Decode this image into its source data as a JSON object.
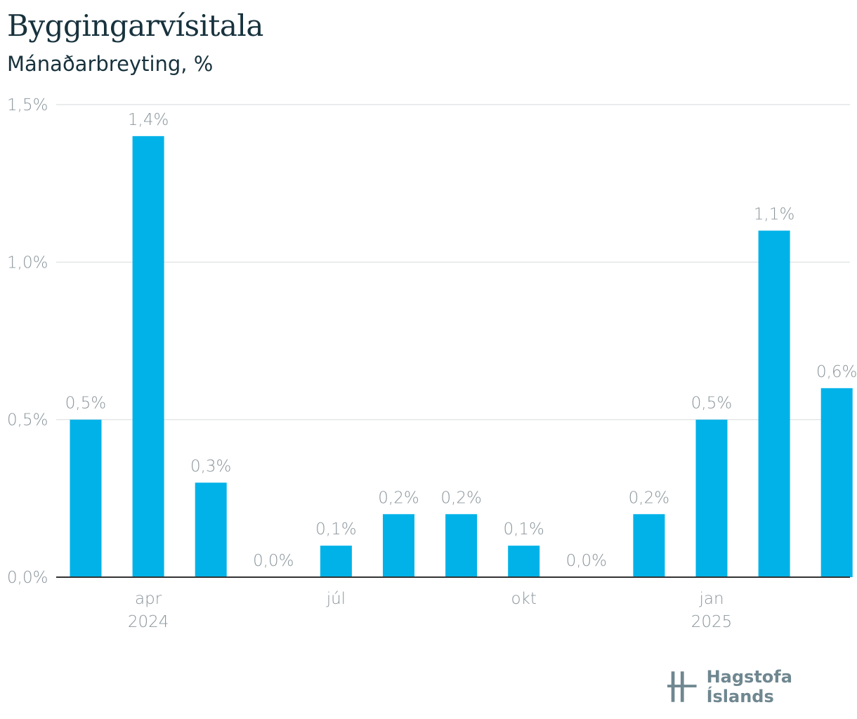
{
  "header": {
    "title": "Byggingarvísitala",
    "subtitle": "Mánaðarbreyting, %"
  },
  "brand": {
    "name": "Hagstofa Íslands",
    "color": "#6f8790"
  },
  "colors": {
    "bar": "#00b2e8",
    "label_text": "#8a959b",
    "axis": "#333333",
    "grid": "#dcdfe1"
  },
  "chart_data": {
    "type": "bar",
    "title": "Byggingarvísitala",
    "subtitle": "Mánaðarbreyting, %",
    "xlabel": "",
    "ylabel": "",
    "ylim": [
      0,
      1.5
    ],
    "y_ticks": [
      {
        "value": 0.0,
        "label": "0,0%"
      },
      {
        "value": 0.5,
        "label": "0,5%"
      },
      {
        "value": 1.0,
        "label": "1,0%"
      },
      {
        "value": 1.5,
        "label": "1,5%"
      }
    ],
    "categories": [
      "2024-03",
      "2024-04",
      "2024-05",
      "2024-06",
      "2024-07",
      "2024-08",
      "2024-09",
      "2024-10",
      "2024-11",
      "2024-12",
      "2025-01",
      "2025-02",
      "2025-03"
    ],
    "values": [
      0.5,
      1.4,
      0.3,
      0.0,
      0.1,
      0.2,
      0.2,
      0.1,
      0.0,
      0.2,
      0.5,
      1.1,
      0.6
    ],
    "data_labels": [
      "0,5%",
      "1,4%",
      "0,3%",
      "0,0%",
      "0,1%",
      "0,2%",
      "0,2%",
      "0,1%",
      "0,0%",
      "0,2%",
      "0,5%",
      "1,1%",
      "0,6%"
    ],
    "x_ticks": [
      {
        "index": 1,
        "label": "apr",
        "sublabel": "2024"
      },
      {
        "index": 4,
        "label": "júl",
        "sublabel": ""
      },
      {
        "index": 7,
        "label": "okt",
        "sublabel": ""
      },
      {
        "index": 10,
        "label": "jan",
        "sublabel": "2025"
      }
    ],
    "grid": true,
    "legend": "none"
  }
}
